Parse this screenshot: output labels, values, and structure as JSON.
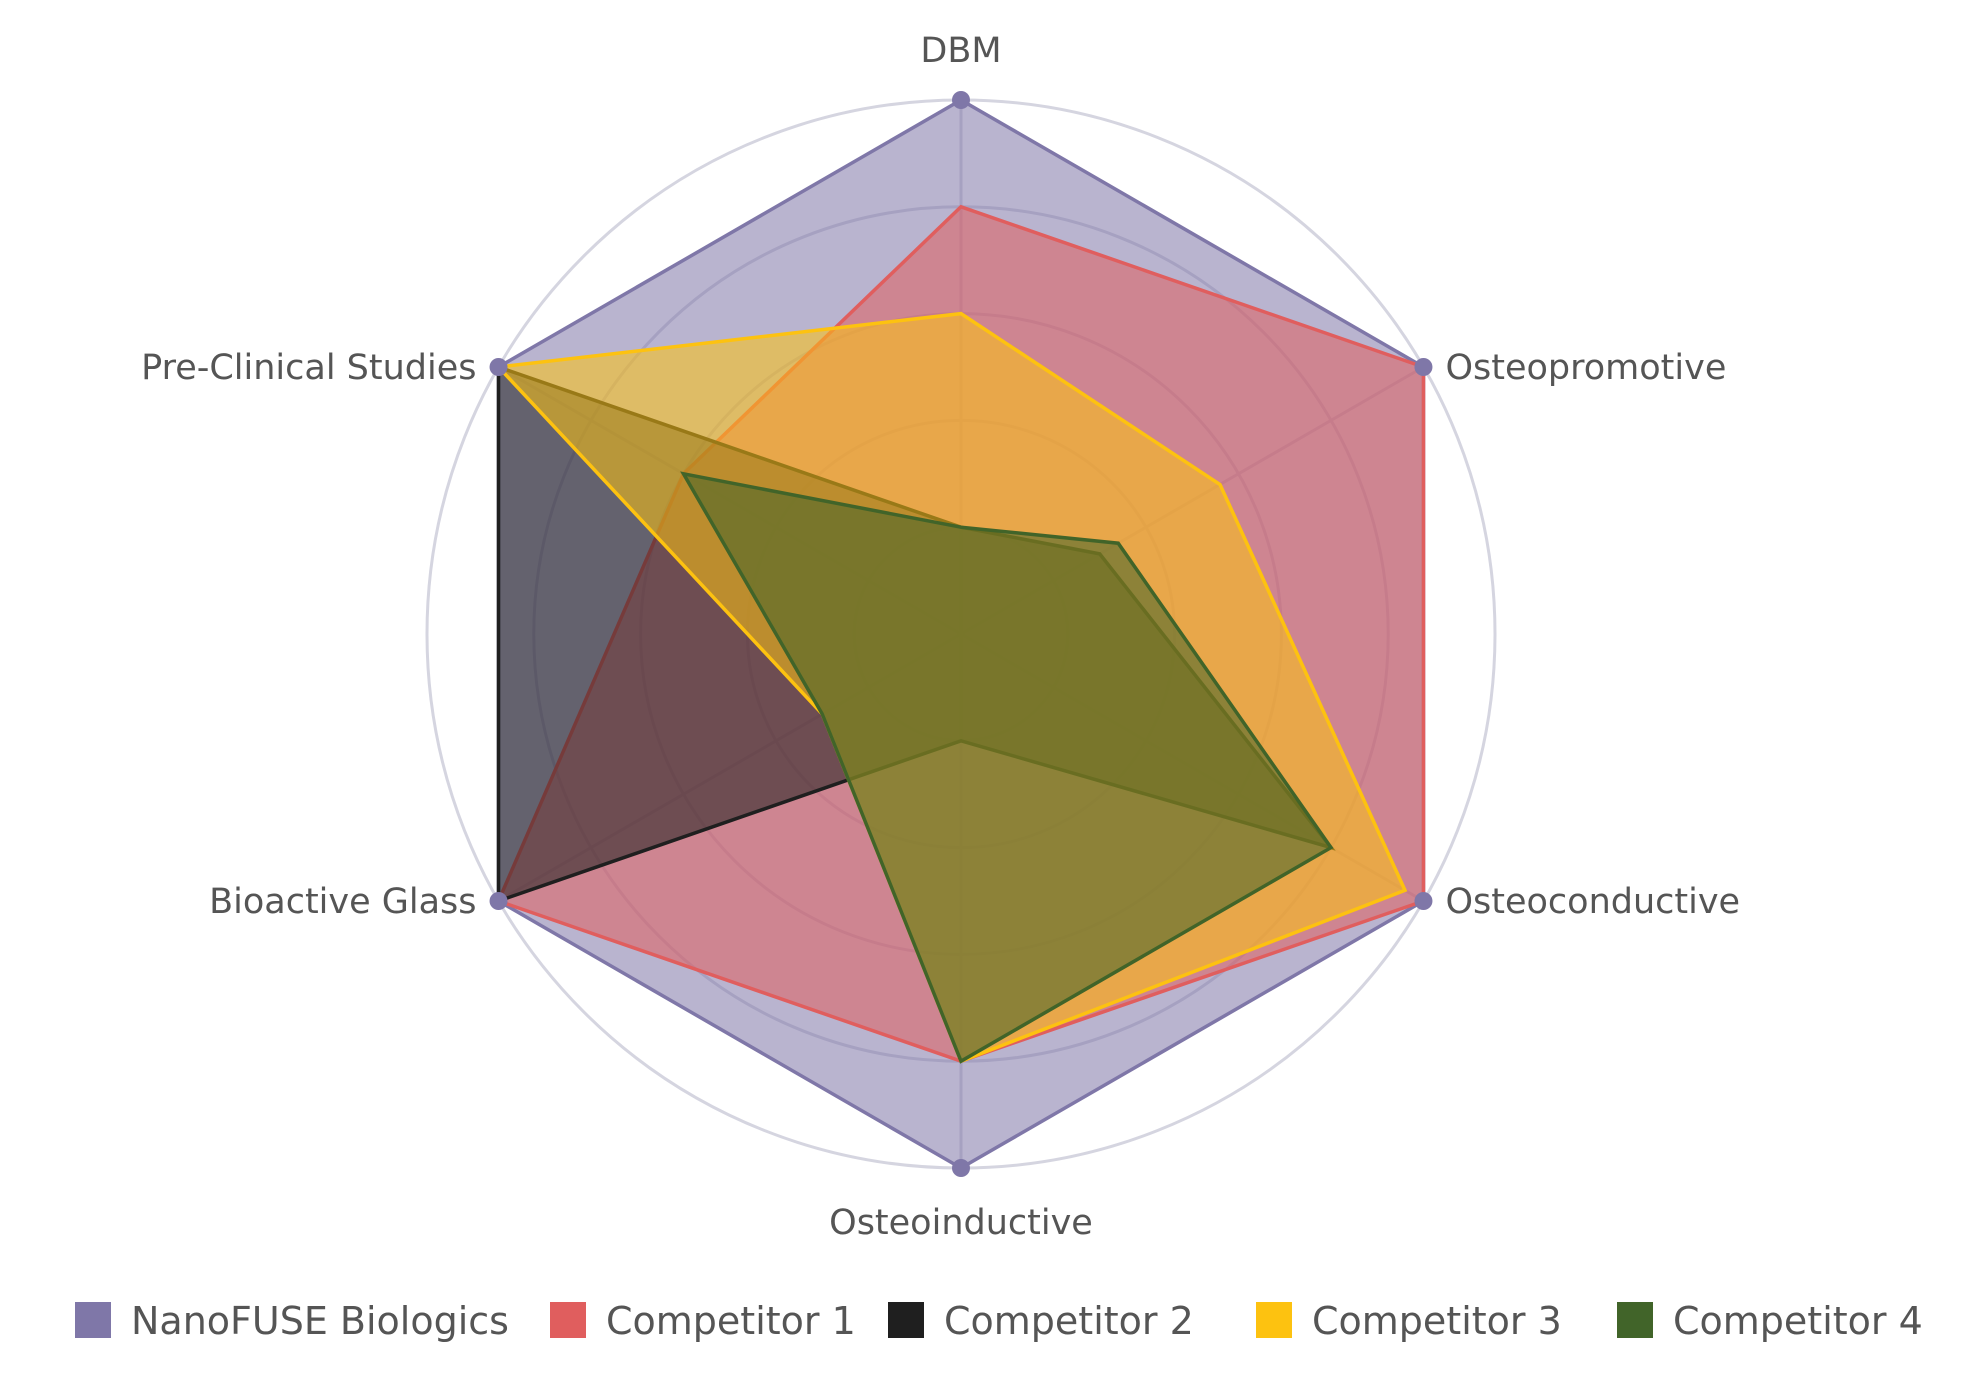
{
  "chart_data": {
    "type": "radar",
    "title": "",
    "axes": [
      "DBM",
      "Osteopromotive",
      "Osteoconductive",
      "Osteoinductive",
      "Bioactive Glass",
      "Pre-Clinical Studies"
    ],
    "rmax": 5,
    "grid_levels": [
      1,
      2,
      3,
      4,
      5
    ],
    "grid": "circular",
    "legend_position": "bottom",
    "series": [
      {
        "name": "NanoFUSE Biologics",
        "color": "#7f77a8",
        "values": [
          5,
          5,
          5,
          5,
          5,
          5
        ]
      },
      {
        "name": "Competitor 1",
        "color": "#e05e5e",
        "values": [
          4,
          5,
          5,
          4,
          5,
          3
        ]
      },
      {
        "name": "Competitor 2",
        "color": "#1f1f1f",
        "values": [
          1,
          1.5,
          4,
          1,
          5,
          5
        ]
      },
      {
        "name": "Competitor 3",
        "color": "#fdc210",
        "values": [
          3,
          2.8,
          4.8,
          4,
          1.5,
          5
        ]
      },
      {
        "name": "Competitor 4",
        "color": "#416429",
        "values": [
          1,
          1.7,
          4,
          4,
          1.5,
          3
        ]
      }
    ]
  }
}
